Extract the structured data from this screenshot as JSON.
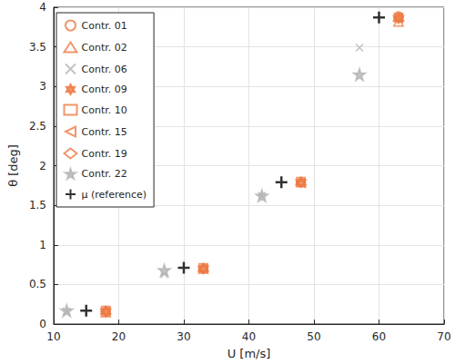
{
  "chart_data": {
    "type": "scatter",
    "x_label": "U [m/s]",
    "y_label": "θ [deg]",
    "xlim": [
      10,
      70
    ],
    "xticks": [
      10,
      20,
      30,
      40,
      50,
      60,
      70
    ],
    "ylim": [
      0,
      4
    ],
    "yticks": [
      0,
      0.5,
      1,
      1.5,
      2,
      2.5,
      3,
      3.5,
      4
    ],
    "grid": true,
    "legend": "upper left",
    "series": [
      {
        "name": "Contr. 01",
        "color": "#ee7b45",
        "marker": "circle",
        "x": [
          18,
          33,
          48,
          63
        ],
        "values": [
          0.16,
          0.7,
          1.79,
          3.89
        ]
      },
      {
        "name": "Contr. 02",
        "color": "#ee7b45",
        "marker": "triangle",
        "x": [
          18,
          33,
          48,
          63
        ],
        "values": [
          0.15,
          0.7,
          1.79,
          3.82
        ]
      },
      {
        "name": "Contr. 06",
        "color": "#b4b4b4",
        "marker": "x",
        "x": [
          12,
          27,
          42,
          57
        ],
        "values": [
          0.16,
          0.63,
          1.62,
          3.49
        ]
      },
      {
        "name": "Contr. 09",
        "color": "#ee7b45",
        "marker": "hexagram",
        "x": [
          18,
          33,
          48,
          63
        ],
        "values": [
          0.16,
          0.7,
          1.79,
          3.86
        ]
      },
      {
        "name": "Contr. 10",
        "color": "#ee7b45",
        "marker": "square",
        "x": [
          18,
          33,
          48,
          63
        ],
        "values": [
          0.17,
          0.71,
          1.8,
          3.87
        ]
      },
      {
        "name": "Contr. 15",
        "color": "#ee7b45",
        "marker": "triangle-left",
        "x": [
          18,
          33,
          48,
          63
        ],
        "values": [
          0.16,
          0.7,
          1.78,
          3.86
        ]
      },
      {
        "name": "Contr. 19",
        "color": "#ee7b45",
        "marker": "diamond",
        "x": [
          18,
          33,
          48,
          63
        ],
        "values": [
          0.16,
          0.7,
          1.79,
          3.87
        ]
      },
      {
        "name": "Contr. 22",
        "color": "#b4b4b4",
        "marker": "pentagram",
        "x": [
          12,
          27,
          42,
          57
        ],
        "values": [
          0.17,
          0.68,
          1.62,
          3.15
        ]
      },
      {
        "name": "μ (reference)",
        "color": "#000000",
        "marker": "plus",
        "x": [
          15,
          30,
          45,
          60
        ],
        "values": [
          0.17,
          0.71,
          1.79,
          3.87
        ]
      }
    ]
  }
}
